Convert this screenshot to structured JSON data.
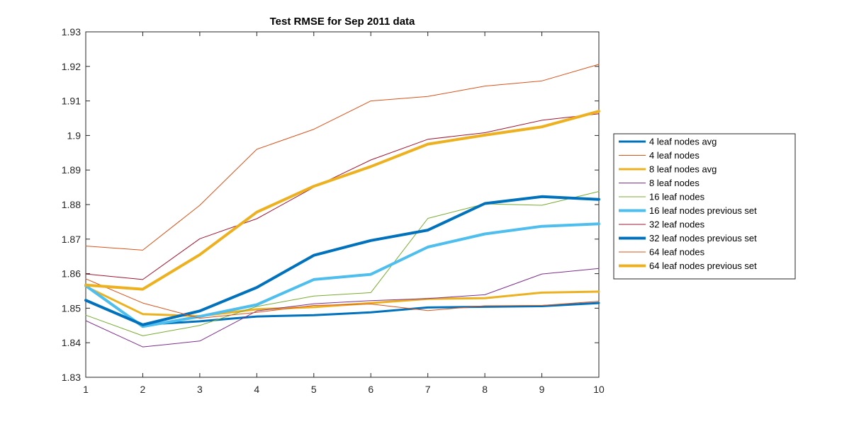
{
  "chart_data": {
    "type": "line",
    "title": "Test RMSE for Sep 2011 data",
    "xlabel": "",
    "ylabel": "",
    "x": [
      1,
      2,
      3,
      4,
      5,
      6,
      7,
      8,
      9,
      10
    ],
    "xlim": [
      1,
      10
    ],
    "ylim": [
      1.83,
      1.93
    ],
    "xticks": [
      "1",
      "2",
      "3",
      "4",
      "5",
      "6",
      "7",
      "8",
      "9",
      "10"
    ],
    "yticks": [
      "1.83",
      "1.84",
      "1.85",
      "1.86",
      "1.87",
      "1.88",
      "1.89",
      "1.9",
      "1.91",
      "1.92",
      "1.93"
    ],
    "grid": false,
    "legend_position": "east-outside",
    "series": [
      {
        "name": "4 leaf nodes avg",
        "color": "#0072bd",
        "width": 3,
        "values": [
          1.8522,
          1.8452,
          1.8462,
          1.8476,
          1.848,
          1.8488,
          1.8502,
          1.8504,
          1.8506,
          1.8515
        ]
      },
      {
        "name": "4 leaf nodes",
        "color": "#d95319",
        "width": 1,
        "values": [
          1.868,
          1.8668,
          1.8798,
          1.896,
          1.9018,
          1.91,
          1.9113,
          1.9143,
          1.9158,
          1.9206
        ]
      },
      {
        "name": "8 leaf nodes avg",
        "color": "#edb120",
        "width": 3,
        "values": [
          1.8563,
          1.8483,
          1.8477,
          1.8497,
          1.8503,
          1.8515,
          1.8527,
          1.8529,
          1.8545,
          1.8548
        ]
      },
      {
        "name": "8 leaf nodes",
        "color": "#7e2f8e",
        "width": 1,
        "values": [
          1.8464,
          1.8388,
          1.8405,
          1.8492,
          1.8513,
          1.8522,
          1.8528,
          1.8539,
          1.8599,
          1.8615
        ]
      },
      {
        "name": "16 leaf nodes",
        "color": "#77ac30",
        "width": 1,
        "values": [
          1.848,
          1.842,
          1.845,
          1.8505,
          1.8535,
          1.8545,
          1.876,
          1.8802,
          1.8798,
          1.8838
        ]
      },
      {
        "name": "16 leaf nodes previous set",
        "color": "#4dbeee",
        "width": 4,
        "values": [
          1.8565,
          1.8447,
          1.8476,
          1.851,
          1.8583,
          1.8598,
          1.8677,
          1.8715,
          1.8737,
          1.8744
        ]
      },
      {
        "name": "32 leaf nodes",
        "color": "#a2142f",
        "width": 1,
        "values": [
          1.8599,
          1.8583,
          1.8701,
          1.8759,
          1.885,
          1.8929,
          1.8989,
          1.9008,
          1.9044,
          1.9063
        ]
      },
      {
        "name": "32 leaf nodes previous set",
        "color": "#0072bd",
        "width": 4,
        "values": [
          1.8523,
          1.8452,
          1.8492,
          1.856,
          1.8653,
          1.8696,
          1.8726,
          1.8803,
          1.8823,
          1.8815
        ]
      },
      {
        "name": "64 leaf nodes",
        "color": "#d95319",
        "width": 1,
        "values": [
          1.8585,
          1.8515,
          1.8471,
          1.8488,
          1.8508,
          1.8512,
          1.8493,
          1.8507,
          1.8508,
          1.852
        ]
      },
      {
        "name": "64 leaf nodes previous set",
        "color": "#edb120",
        "width": 4,
        "values": [
          1.8567,
          1.8555,
          1.8655,
          1.8778,
          1.8853,
          1.891,
          1.8975,
          1.9001,
          1.9025,
          1.907
        ]
      }
    ]
  }
}
